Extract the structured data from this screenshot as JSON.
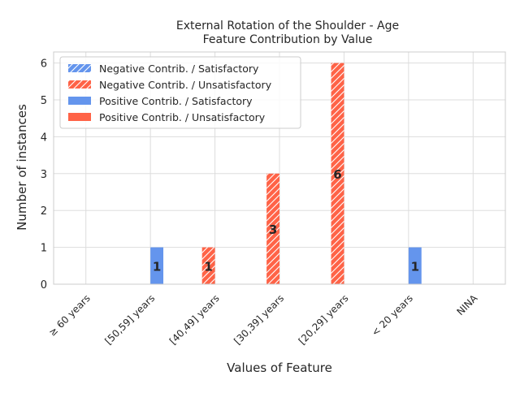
{
  "chart_data": {
    "type": "bar",
    "title": "External Rotation of the Shoulder - Age",
    "subtitle": "Feature Contribution by Value",
    "xlabel": "Values of Feature",
    "ylabel": "Number of instances",
    "ylim": [
      0,
      6.3
    ],
    "yticks": [
      0,
      1,
      2,
      3,
      4,
      5,
      6
    ],
    "categories": [
      "≥ 60 years",
      "[50,59] years",
      "[40,49] years",
      "[30,39] years",
      "[20,29] years",
      "< 20 years",
      "NINA"
    ],
    "grid": true,
    "legend_position": "top-left",
    "series": [
      {
        "name": "Negative Contrib. / Satisfactory",
        "color": "#6495ed",
        "hatch": true,
        "values": [
          0,
          0,
          0,
          0,
          0,
          0,
          0
        ]
      },
      {
        "name": "Negative Contrib. / Unsatisfactory",
        "color": "#ff6347",
        "hatch": true,
        "values": [
          0,
          0,
          1,
          3,
          6,
          0,
          0
        ]
      },
      {
        "name": "Positive Contrib. / Satisfactory",
        "color": "#6495ed",
        "hatch": false,
        "values": [
          0,
          1,
          0,
          0,
          0,
          1,
          0
        ]
      },
      {
        "name": "Positive Contrib. / Unsatisfactory",
        "color": "#ff6347",
        "hatch": false,
        "values": [
          0,
          0,
          0,
          0,
          0,
          0,
          0
        ]
      }
    ],
    "data_labels": [
      {
        "category": "[50,59] years",
        "series": "Positive Contrib. / Satisfactory",
        "text": "1"
      },
      {
        "category": "[40,49] years",
        "series": "Negative Contrib. / Unsatisfactory",
        "text": "1"
      },
      {
        "category": "[30,39] years",
        "series": "Negative Contrib. / Unsatisfactory",
        "text": "3"
      },
      {
        "category": "[20,29] years",
        "series": "Negative Contrib. / Unsatisfactory",
        "text": "6"
      },
      {
        "category": "< 20 years",
        "series": "Positive Contrib. / Satisfactory",
        "text": "1"
      }
    ]
  }
}
